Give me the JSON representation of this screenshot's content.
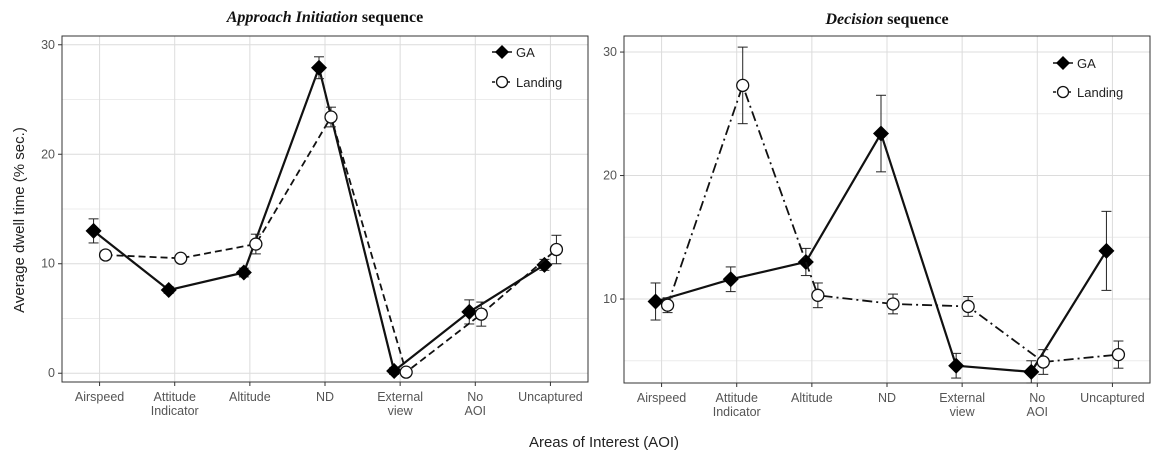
{
  "xlabel": "Areas of Interest (AOI)",
  "ylabel": "Average dwell time (% sec.)",
  "chart_data": [
    {
      "type": "line",
      "title_italic": "Approach Initiation",
      "title_rest": " sequence",
      "categories": [
        "Airspeed",
        "Attitude Indicator",
        "Altitude",
        "ND",
        "External view",
        "No AOI",
        "Uncaptured"
      ],
      "ylim": [
        -0.8,
        30.8
      ],
      "yticks": [
        0,
        10,
        20,
        30
      ],
      "grid": true,
      "legend_position": "top-right",
      "series": [
        {
          "name": "GA",
          "marker": "filled-diamond",
          "line": "solid",
          "values": [
            13.0,
            7.6,
            9.2,
            27.9,
            0.2,
            5.6,
            9.9
          ],
          "err": [
            1.1,
            0.3,
            0.4,
            1.0,
            0.3,
            1.1,
            0.5
          ]
        },
        {
          "name": "Landing",
          "marker": "open-circle",
          "line": "dashed",
          "values": [
            10.8,
            10.5,
            11.8,
            23.4,
            0.1,
            5.4,
            11.3
          ],
          "err": [
            0.4,
            0.3,
            0.9,
            0.9,
            0.3,
            1.1,
            1.3
          ]
        }
      ]
    },
    {
      "type": "line",
      "title_italic": "Decision",
      "title_rest": " sequence",
      "categories": [
        "Airspeed",
        "Attitude Indicator",
        "Altitude",
        "ND",
        "External view",
        "No AOI",
        "Uncaptured"
      ],
      "ylim": [
        3.2,
        31.3
      ],
      "yticks": [
        10,
        20,
        30
      ],
      "grid": true,
      "legend_position": "top-right",
      "series": [
        {
          "name": "GA",
          "marker": "filled-diamond",
          "line": "solid",
          "values": [
            9.8,
            11.6,
            13.0,
            23.4,
            4.6,
            4.1,
            13.9
          ],
          "err": [
            1.5,
            1.0,
            1.1,
            3.1,
            1.0,
            0.9,
            3.2
          ]
        },
        {
          "name": "Landing",
          "marker": "open-circle",
          "line": "dashdot",
          "values": [
            9.5,
            27.3,
            10.3,
            9.6,
            9.4,
            4.9,
            5.5
          ],
          "err": [
            0.6,
            3.1,
            1.0,
            0.8,
            0.8,
            1.0,
            1.1
          ]
        }
      ]
    }
  ]
}
